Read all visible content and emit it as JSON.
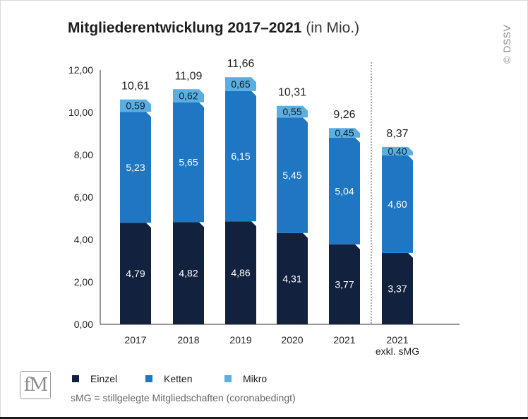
{
  "title": {
    "main": "Mitgliederentwicklung 2017–2021",
    "sub": "(in Mio.)"
  },
  "copyright": "© DSSV",
  "logo_text": "fM",
  "note": "sMG = stillgelegte Mitgliedschaften (coronabedingt)",
  "legend": [
    {
      "label": "Einzel",
      "color": "#12213d"
    },
    {
      "label": "Ketten",
      "color": "#1f77c4"
    },
    {
      "label": "Mikro",
      "color": "#5aaee0"
    }
  ],
  "chart_data": {
    "type": "bar",
    "stacked": true,
    "categories": [
      "2017",
      "2018",
      "2019",
      "2020",
      "2021",
      "2021\nexkl. sMG"
    ],
    "totals": [
      "10,61",
      "11,09",
      "11,66",
      "10,31",
      "9,26",
      "8,37"
    ],
    "series": [
      {
        "name": "Einzel",
        "color": "#12213d",
        "values": [
          4.79,
          4.82,
          4.86,
          4.31,
          3.77,
          3.37
        ],
        "labels": [
          "4,79",
          "4,82",
          "4,86",
          "4,31",
          "3,77",
          "3,37"
        ]
      },
      {
        "name": "Ketten",
        "color": "#1f77c4",
        "values": [
          5.23,
          5.65,
          6.15,
          5.45,
          5.04,
          4.6
        ],
        "labels": [
          "5,23",
          "5,65",
          "6,15",
          "5,45",
          "5,04",
          "4,60"
        ]
      },
      {
        "name": "Mikro",
        "color": "#5aaee0",
        "values": [
          0.59,
          0.62,
          0.65,
          0.55,
          0.45,
          0.4
        ],
        "labels": [
          "0,59",
          "0,62",
          "0,65",
          "0,55",
          "0,45",
          "0,40"
        ]
      }
    ],
    "yticks": [
      "0,00",
      "2,00",
      "4,00",
      "6,00",
      "8,00",
      "10,00",
      "12,00"
    ],
    "ylim": [
      0,
      12
    ],
    "separator_before_last": true
  }
}
